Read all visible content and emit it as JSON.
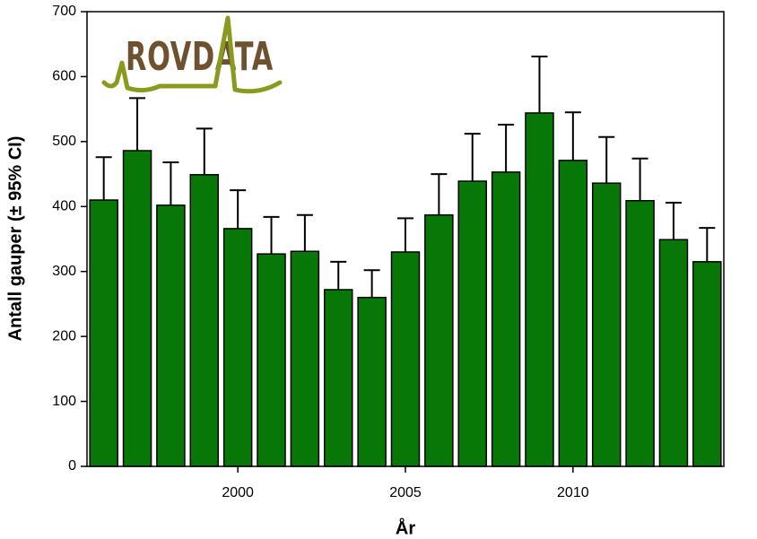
{
  "chart_data": {
    "type": "bar",
    "logo": "ROVDATA",
    "x_label": "År",
    "y_label": "Antall gauper (± 95% CI)",
    "x": [
      1996,
      1997,
      1998,
      1999,
      2000,
      2001,
      2002,
      2003,
      2004,
      2005,
      2006,
      2007,
      2008,
      2009,
      2010,
      2011,
      2012,
      2013,
      2014
    ],
    "values": [
      410,
      486,
      402,
      449,
      366,
      327,
      331,
      272,
      260,
      330,
      387,
      439,
      453,
      544,
      471,
      436,
      409,
      349,
      315
    ],
    "errors": [
      66,
      81,
      66,
      71,
      59,
      57,
      56,
      43,
      42,
      52,
      63,
      73,
      73,
      87,
      74,
      71,
      65,
      57,
      52
    ],
    "color": "#077807",
    "xlim": [
      1995.5,
      2014.5
    ],
    "xticks": [
      2000,
      2005,
      2010
    ],
    "ylim": [
      0,
      700
    ],
    "yticks": [
      0,
      100,
      200,
      300,
      400,
      500,
      600,
      700
    ]
  }
}
